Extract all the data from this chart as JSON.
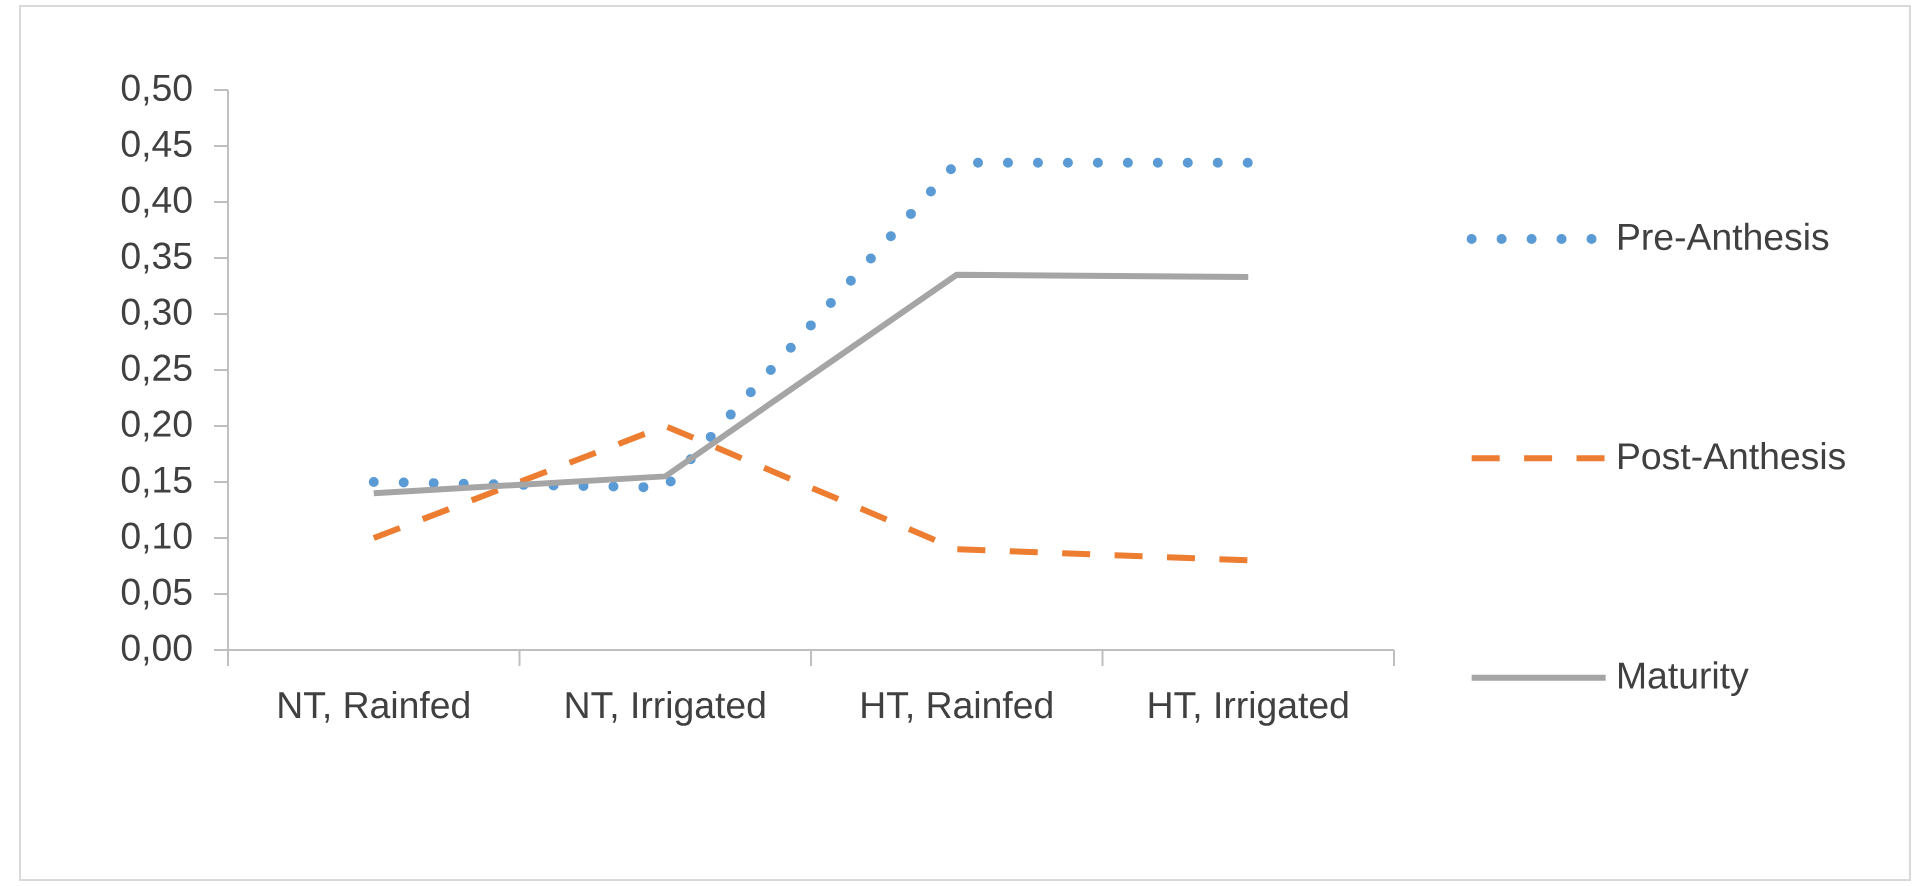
{
  "chart_data": {
    "type": "line",
    "categories": [
      "NT, Rainfed",
      "NT, Irrigated",
      "HT, Rainfed",
      "HT, Irrigated"
    ],
    "series": [
      {
        "name": "Pre-Anthesis",
        "color": "#5b9bd5",
        "line_style": "dotted",
        "values": [
          0.15,
          0.145,
          0.435,
          0.435
        ]
      },
      {
        "name": "Post-Anthesis",
        "color": "#ed7d31",
        "line_style": "dashed",
        "values": [
          0.1,
          0.2,
          0.09,
          0.08
        ]
      },
      {
        "name": "Maturity",
        "color": "#a5a5a5",
        "line_style": "solid",
        "values": [
          0.14,
          0.155,
          0.335,
          0.333
        ]
      }
    ],
    "ylim": [
      0,
      0.5
    ],
    "yticks": [
      {
        "value": 0,
        "label": "0,00"
      },
      {
        "value": 0.05,
        "label": "0,05"
      },
      {
        "value": 0.1,
        "label": "0,10"
      },
      {
        "value": 0.15,
        "label": "0,15"
      },
      {
        "value": 0.2,
        "label": "0,20"
      },
      {
        "value": 0.25,
        "label": "0,25"
      },
      {
        "value": 0.3,
        "label": "0,30"
      },
      {
        "value": 0.35,
        "label": "0,35"
      },
      {
        "value": 0.4,
        "label": "0,40"
      },
      {
        "value": 0.45,
        "label": "0,45"
      },
      {
        "value": 0.5,
        "label": "0,50"
      }
    ],
    "legend": "right",
    "marker": "none"
  }
}
